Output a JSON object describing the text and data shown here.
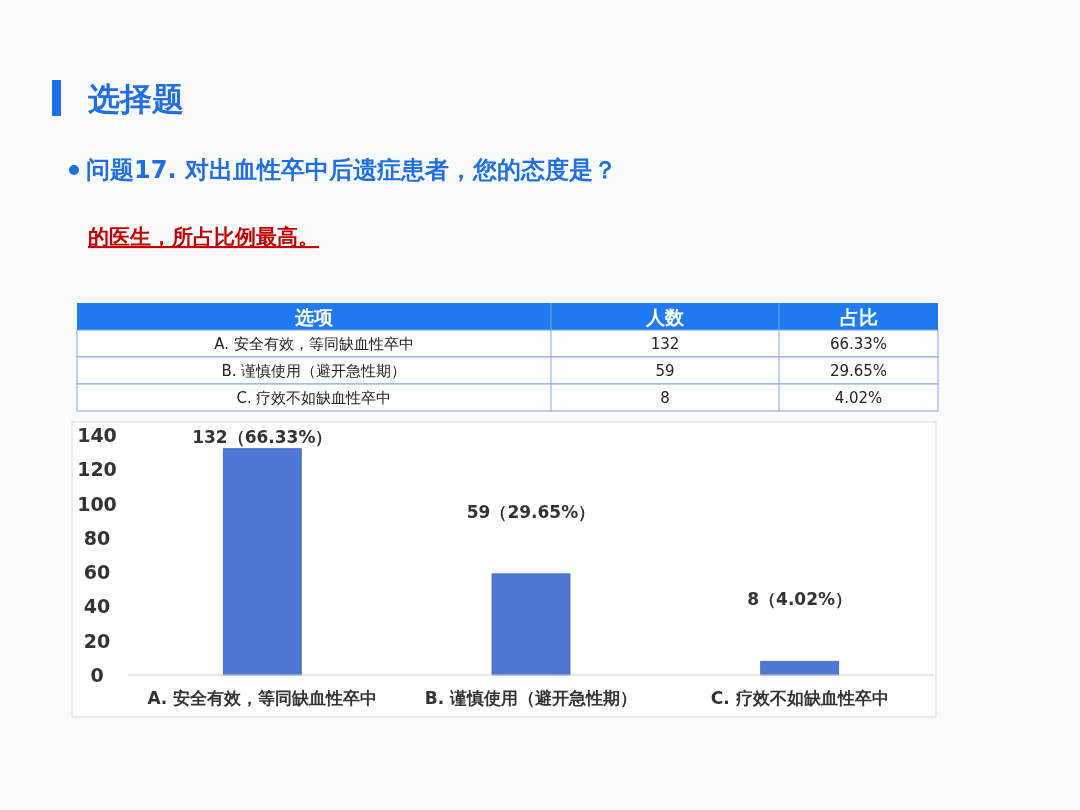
{
  "chart_data": {
    "type": "bar",
    "title": "选择题",
    "subtitle": "问题17. 对出血性卒中后遗症患者，您的态度是？",
    "annotations": [
      "的医生，所占比例最高。",
      "选项",
      "人数",
      "占比",
      "66.33%",
      "29.65%",
      "4.02%",
      "132",
      "59",
      "8"
    ],
    "categories": [
      "A. 安全有效，等同缺血性卒中",
      "B. 谨慎使用（避开急性期）",
      "C. 疗效不如缺血性卒中"
    ],
    "values": [
      132,
      59,
      8
    ],
    "value_labels": [
      "132（66.33%）",
      "59（29.65%）",
      "8（4.02%）"
    ],
    "color": "#4f77d4",
    "ylim": [
      0,
      140
    ],
    "yticks": [
      0,
      20,
      40,
      60,
      80,
      100,
      120,
      140
    ]
  }
}
